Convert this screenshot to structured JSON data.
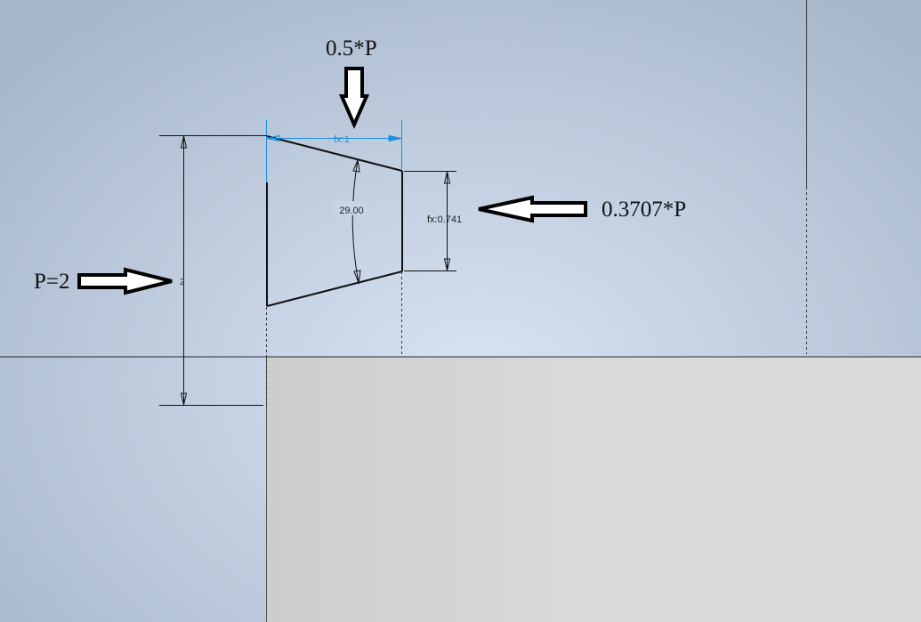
{
  "annotations": {
    "top_callout": "0.5*P",
    "right_callout": "0.3707*P",
    "left_callout": "P=2"
  },
  "dimensions": {
    "top_width": "fx:1",
    "angle": "29.00",
    "right_height": "fx:0.741",
    "left_height": "2"
  },
  "colors": {
    "active_dimension": "#1a8fe0",
    "sketch_line": "#111111",
    "background": "#c3d0e2",
    "part_face": "#d9d9d9"
  },
  "icons": [
    "arrow-down-icon",
    "arrow-left-icon",
    "arrow-right-icon"
  ]
}
